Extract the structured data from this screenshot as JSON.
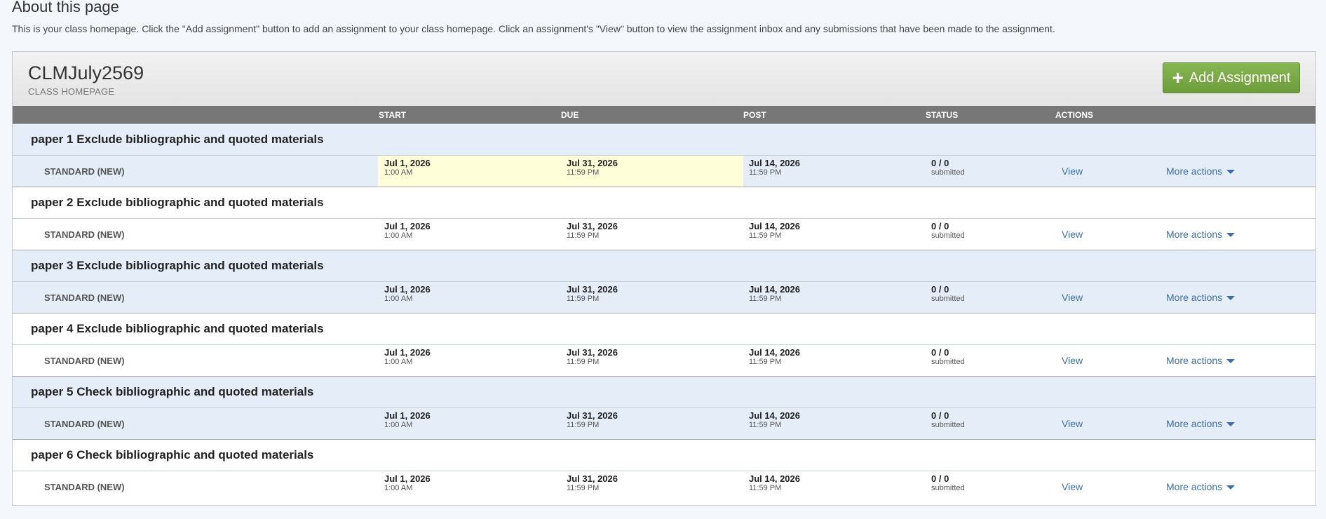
{
  "about": {
    "title": "About this page",
    "text": "This is your class homepage. Click the \"Add assignment\" button to add an assignment to your class homepage. Click an assignment's \"View\" button to view the assignment inbox and any submissions that have been made to the assignment."
  },
  "class": {
    "title": "CLMJuly2569",
    "subtitle": "CLASS HOMEPAGE",
    "add_label": "Add Assignment",
    "add_icon": "plus-icon"
  },
  "columns": {
    "start": "START",
    "due": "DUE",
    "post": "POST",
    "status": "STATUS",
    "actions": "ACTIONS"
  },
  "colors": {
    "accent_green": "#7aab46",
    "header_gray": "#777777",
    "row_blue": "#e5eef8",
    "highlight_yellow": "#fefed8",
    "link_blue": "#3d6fa6"
  },
  "assignments": [
    {
      "title": "paper 1 Exclude bibliographic and quoted materials",
      "type": "STANDARD (NEW)",
      "start_date": "Jul 1, 2026",
      "start_time": "1:00 AM",
      "due_date": "Jul 31, 2026",
      "due_time": "11:59 PM",
      "post_date": "Jul 14, 2026",
      "post_time": "11:59 PM",
      "status_count": "0 / 0",
      "status_label": "submitted",
      "view_label": "View",
      "more_label": "More actions"
    },
    {
      "title": "paper 2 Exclude bibliographic and quoted materials",
      "type": "STANDARD (NEW)",
      "start_date": "Jul 1, 2026",
      "start_time": "1:00 AM",
      "due_date": "Jul 31, 2026",
      "due_time": "11:59 PM",
      "post_date": "Jul 14, 2026",
      "post_time": "11:59 PM",
      "status_count": "0 / 0",
      "status_label": "submitted",
      "view_label": "View",
      "more_label": "More actions"
    },
    {
      "title": "paper 3 Exclude bibliographic and quoted materials",
      "type": "STANDARD (NEW)",
      "start_date": "Jul 1, 2026",
      "start_time": "1:00 AM",
      "due_date": "Jul 31, 2026",
      "due_time": "11:59 PM",
      "post_date": "Jul 14, 2026",
      "post_time": "11:59 PM",
      "status_count": "0 / 0",
      "status_label": "submitted",
      "view_label": "View",
      "more_label": "More actions"
    },
    {
      "title": "paper 4 Exclude bibliographic and quoted materials",
      "type": "STANDARD (NEW)",
      "start_date": "Jul 1, 2026",
      "start_time": "1:00 AM",
      "due_date": "Jul 31, 2026",
      "due_time": "11:59 PM",
      "post_date": "Jul 14, 2026",
      "post_time": "11:59 PM",
      "status_count": "0 / 0",
      "status_label": "submitted",
      "view_label": "View",
      "more_label": "More actions"
    },
    {
      "title": "paper 5 Check bibliographic and quoted materials",
      "type": "STANDARD (NEW)",
      "start_date": "Jul 1, 2026",
      "start_time": "1:00 AM",
      "due_date": "Jul 31, 2026",
      "due_time": "11:59 PM",
      "post_date": "Jul 14, 2026",
      "post_time": "11:59 PM",
      "status_count": "0 / 0",
      "status_label": "submitted",
      "view_label": "View",
      "more_label": "More actions"
    },
    {
      "title": "paper 6 Check bibliographic and quoted materials",
      "type": "STANDARD (NEW)",
      "start_date": "Jul 1, 2026",
      "start_time": "1:00 AM",
      "due_date": "Jul 31, 2026",
      "due_time": "11:59 PM",
      "post_date": "Jul 14, 2026",
      "post_time": "11:59 PM",
      "status_count": "0 / 0",
      "status_label": "submitted",
      "view_label": "View",
      "more_label": "More actions"
    }
  ]
}
